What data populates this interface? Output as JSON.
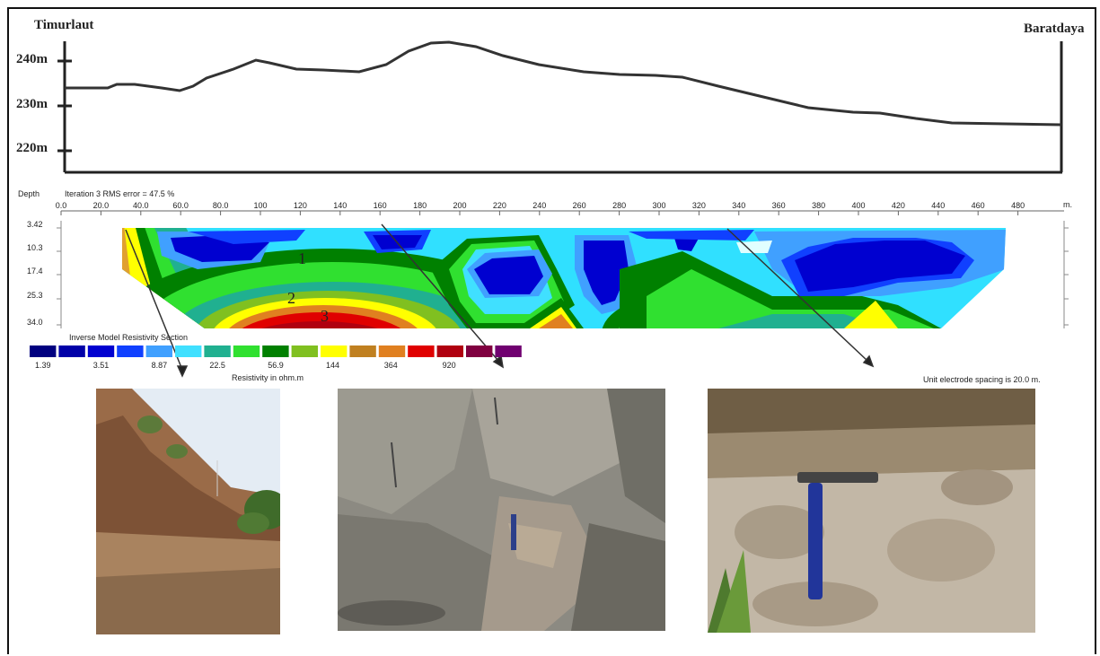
{
  "profile": {
    "left_label": "Timurlaut",
    "right_label": "Baratdaya",
    "elevation_ticks": [
      "240m",
      "230m",
      "220m"
    ]
  },
  "section": {
    "depth_header": "Depth",
    "rms_label": "Iteration 3 RMS error = 47.5 %",
    "distance_ticks": [
      "0.0",
      "20.0",
      "40.0",
      "60.0",
      "80.0",
      "100",
      "120",
      "140",
      "160",
      "180",
      "200",
      "220",
      "240",
      "260",
      "280",
      "300",
      "320",
      "340",
      "360",
      "380",
      "400",
      "420",
      "440",
      "460",
      "480"
    ],
    "distance_unit": "m.",
    "depth_ticks": [
      "3.42",
      "10.3",
      "17.4",
      "25.3",
      "34.0"
    ],
    "zone_labels": [
      "1",
      "2",
      "3"
    ],
    "legend_title": "Inverse Model Resistivity Section",
    "legend_values": [
      "1.39",
      "3.51",
      "8.87",
      "22.5",
      "56.9",
      "144",
      "364",
      "920"
    ],
    "legend_colors": [
      "#000080",
      "#0000a8",
      "#0000d0",
      "#1040ff",
      "#40a0ff",
      "#40e0ff",
      "#20b090",
      "#30e030",
      "#008000",
      "#80c020",
      "#ffff00",
      "#c08020",
      "#e08020",
      "#e00000",
      "#b00010",
      "#800040",
      "#700070"
    ],
    "resistivity_unit": "Resistivity in ohm.m",
    "electrode_note": "Unit electrode spacing is 20.0 m."
  }
}
